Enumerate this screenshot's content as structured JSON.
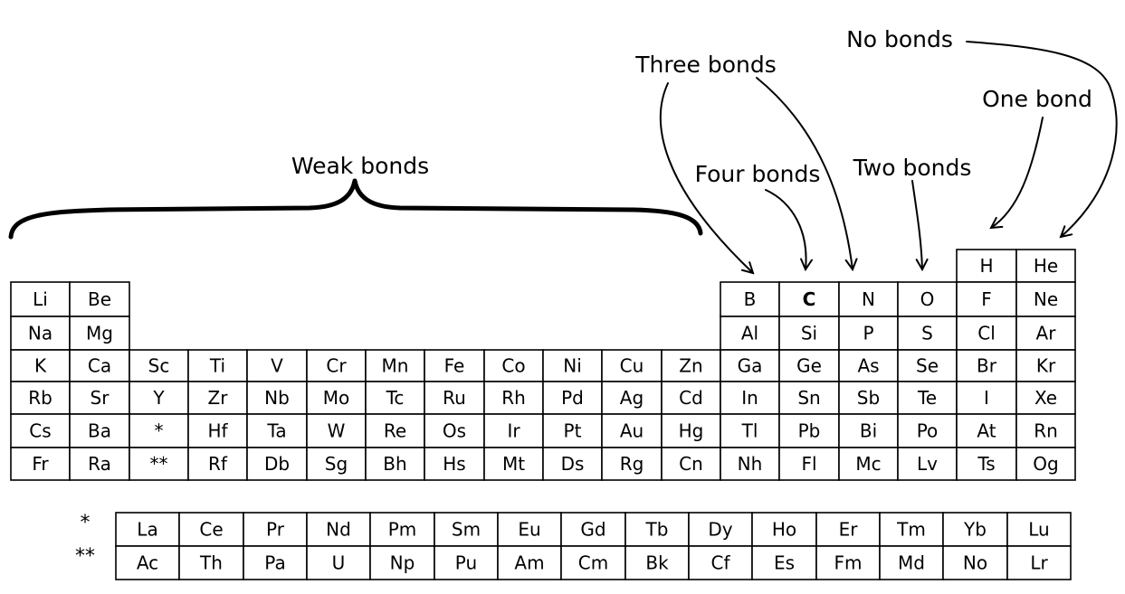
{
  "labels": {
    "weak": "Weak bonds",
    "three": "Three bonds",
    "no": "No bonds",
    "one": "One bond",
    "four": "Four bonds",
    "two": "Two bonds"
  },
  "main_table": [
    [
      "",
      "",
      "",
      "",
      "",
      "",
      "",
      "",
      "",
      "",
      "",
      "",
      "",
      "",
      "",
      "",
      "H",
      "He"
    ],
    [
      "Li",
      "Be",
      "",
      "",
      "",
      "",
      "",
      "",
      "",
      "",
      "",
      "",
      "B",
      "C",
      "N",
      "O",
      "F",
      "Ne"
    ],
    [
      "Na",
      "Mg",
      "",
      "",
      "",
      "",
      "",
      "",
      "",
      "",
      "",
      "",
      "Al",
      "Si",
      "P",
      "S",
      "Cl",
      "Ar"
    ],
    [
      "K",
      "Ca",
      "Sc",
      "Ti",
      "V",
      "Cr",
      "Mn",
      "Fe",
      "Co",
      "Ni",
      "Cu",
      "Zn",
      "Ga",
      "Ge",
      "As",
      "Se",
      "Br",
      "Kr"
    ],
    [
      "Rb",
      "Sr",
      "Y",
      "Zr",
      "Nb",
      "Mo",
      "Tc",
      "Ru",
      "Rh",
      "Pd",
      "Ag",
      "Cd",
      "In",
      "Sn",
      "Sb",
      "Te",
      "I",
      "Xe"
    ],
    [
      "Cs",
      "Ba",
      "*",
      "Hf",
      "Ta",
      "W",
      "Re",
      "Os",
      "Ir",
      "Pt",
      "Au",
      "Hg",
      "Tl",
      "Pb",
      "Bi",
      "Po",
      "At",
      "Rn"
    ],
    [
      "Fr",
      "Ra",
      "**",
      "Rf",
      "Db",
      "Sg",
      "Bh",
      "Hs",
      "Mt",
      "Ds",
      "Rg",
      "Cn",
      "Nh",
      "Fl",
      "Mc",
      "Lv",
      "Ts",
      "Og"
    ]
  ],
  "f_block": {
    "markers": [
      "*",
      "**"
    ],
    "rows": [
      [
        "La",
        "Ce",
        "Pr",
        "Nd",
        "Pm",
        "Sm",
        "Eu",
        "Gd",
        "Tb",
        "Dy",
        "Ho",
        "Er",
        "Tm",
        "Yb",
        "Lu"
      ],
      [
        "Ac",
        "Th",
        "Pa",
        "U",
        "Np",
        "Pu",
        "Am",
        "Cm",
        "Bk",
        "Cf",
        "Es",
        "Fm",
        "Md",
        "No",
        "Lr"
      ]
    ]
  },
  "emphasized_symbol": "C"
}
